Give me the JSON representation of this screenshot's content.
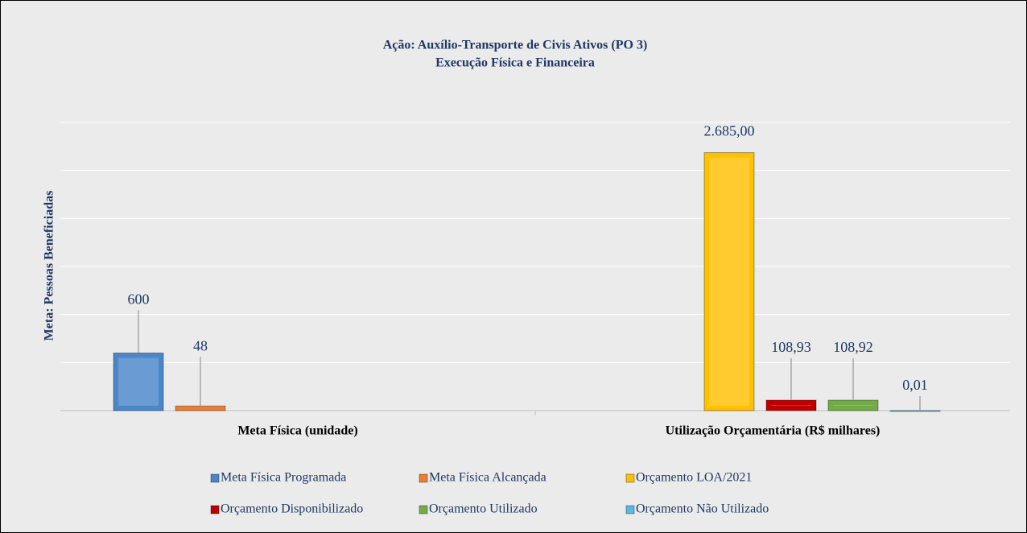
{
  "chart_data": {
    "type": "bar",
    "title": [
      "Ação: Auxílio-Transporte de Civis Ativos (PO 3)",
      "Execução Física e Financeira"
    ],
    "ylabel": "Meta: Pessoas Beneficiadas",
    "categories": [
      "Meta Física (unidade)",
      "Utilização Orçamentária (R$ milhares)"
    ],
    "ylim": [
      0,
      3000
    ],
    "yticks": [
      0,
      500,
      1000,
      1500,
      2000,
      2500,
      3000
    ],
    "grid": true,
    "legend": "bottom",
    "series": [
      {
        "name": "Meta Física Programada",
        "color": "#4a86c8",
        "values": [
          600,
          null
        ],
        "value_labels": [
          "600",
          null
        ]
      },
      {
        "name": "Meta Física Alcançada",
        "color": "#ed7d31",
        "values": [
          48,
          null
        ],
        "value_labels": [
          "48",
          null
        ]
      },
      {
        "name": "Orçamento LOA/2021",
        "color": "#ffc000",
        "values": [
          null,
          2685
        ],
        "value_labels": [
          null,
          "2.685,00"
        ]
      },
      {
        "name": "Orçamento Disponibilizado",
        "color": "#c00000",
        "values": [
          null,
          108.93
        ],
        "value_labels": [
          null,
          "108,93"
        ]
      },
      {
        "name": "Orçamento Utilizado",
        "color": "#70ad47",
        "values": [
          null,
          108.92
        ],
        "value_labels": [
          null,
          "108,92"
        ]
      },
      {
        "name": "Orçamento Não Utilizado",
        "color": "#5bb7e0",
        "values": [
          null,
          0.01
        ],
        "value_labels": [
          null,
          "0,01"
        ]
      }
    ]
  }
}
